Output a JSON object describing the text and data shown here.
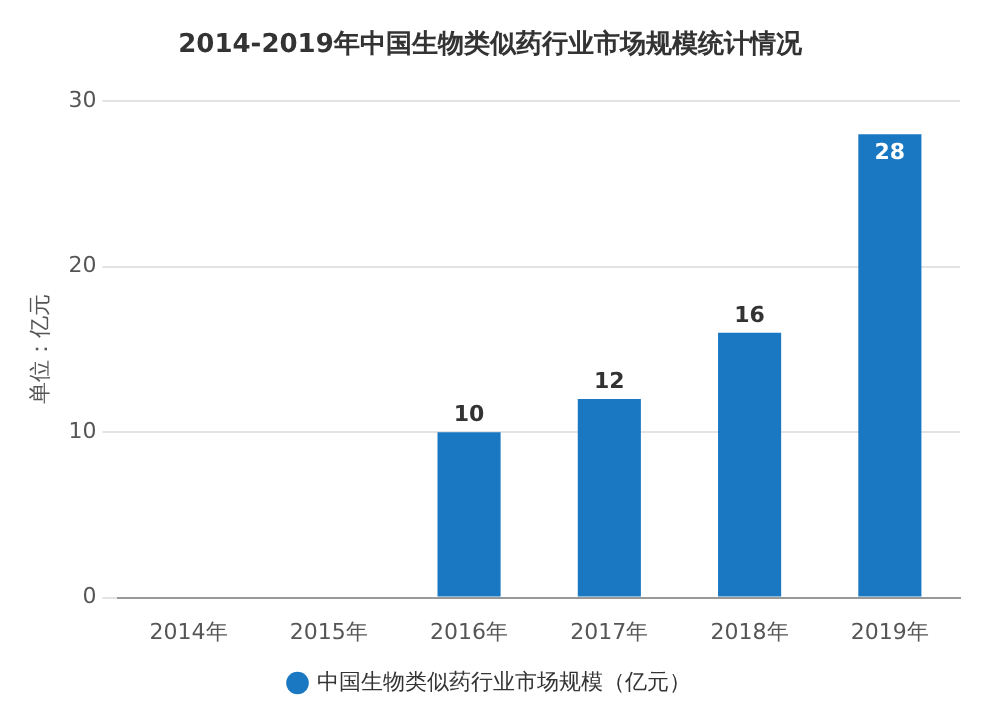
{
  "chart_data": {
    "type": "bar",
    "title": "2014-2019年中国生物类似药行业市场规模统计情况",
    "ylabel": "单位：亿元",
    "categories": [
      "2014年",
      "2015年",
      "2016年",
      "2017年",
      "2018年",
      "2019年"
    ],
    "series": [
      {
        "name": "中国生物类似药行业市场规模（亿元）",
        "color": "#1a78c2",
        "values": [
          null,
          null,
          10,
          12,
          16,
          28
        ]
      }
    ],
    "ylim": [
      0,
      30
    ],
    "yticks": [
      0,
      10,
      20,
      30
    ],
    "grid": "y",
    "legend": "bottom",
    "data_labels": true
  }
}
